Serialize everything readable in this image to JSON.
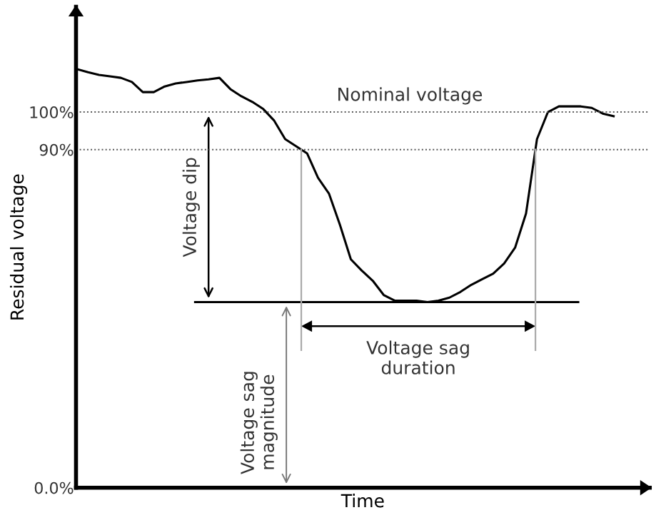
{
  "chart_data": {
    "type": "line",
    "xlabel": "Time",
    "ylabel": "Residual voltage",
    "categories": [
      null,
      null,
      null,
      null,
      null,
      null,
      null,
      null,
      null,
      null,
      null,
      null,
      null,
      null,
      null,
      null,
      null,
      null,
      null,
      null,
      null,
      null,
      null,
      null,
      null,
      null,
      null,
      null,
      null,
      null,
      null,
      null,
      null,
      null,
      null,
      null,
      null,
      null,
      null,
      null,
      null,
      null,
      null,
      null,
      null,
      null,
      null,
      null,
      null,
      null
    ],
    "series": [
      {
        "color": "#000000",
        "values": [
          111.4,
          110.6,
          109.9,
          109.5,
          109.1,
          108.0,
          105.3,
          105.3,
          106.8,
          107.6,
          108.0,
          108.4,
          108.7,
          109.1,
          106.1,
          104.2,
          102.7,
          100.8,
          97.7,
          92.8,
          90.9,
          89.0,
          82.5,
          78.3,
          70.0,
          60.8,
          57.8,
          55.1,
          51.3,
          49.8,
          49.8,
          49.8,
          49.4,
          49.8,
          50.6,
          52.1,
          54.0,
          55.5,
          57.0,
          59.7,
          63.9,
          73.0,
          92.8,
          100.0,
          101.5,
          101.5,
          101.5,
          101.1,
          99.6,
          98.9
        ]
      }
    ],
    "ylim": [
      0,
      128
    ],
    "yticks": [
      {
        "value": 0,
        "label": "0.0%"
      },
      {
        "value": 90,
        "label": "90%"
      },
      {
        "value": 100,
        "label": "100%"
      }
    ],
    "tick_labels": "y",
    "grid": false,
    "legend": false,
    "marker": "none",
    "line_style": "solid",
    "ref_lines": [
      {
        "axis": "y",
        "value": 100,
        "label": "Nominal voltage",
        "line_style": "dotted",
        "color": "#555555"
      },
      {
        "axis": "y",
        "value": 90,
        "label": null,
        "line_style": "dotted",
        "color": "#555555"
      },
      {
        "axis": "y",
        "value": 49.4,
        "label": null,
        "line_style": "solid",
        "color": "#000000"
      }
    ],
    "annotations": [
      "Voltage dip",
      "Voltage sag\nduration",
      "Voltage sag\nmagnitude"
    ]
  }
}
